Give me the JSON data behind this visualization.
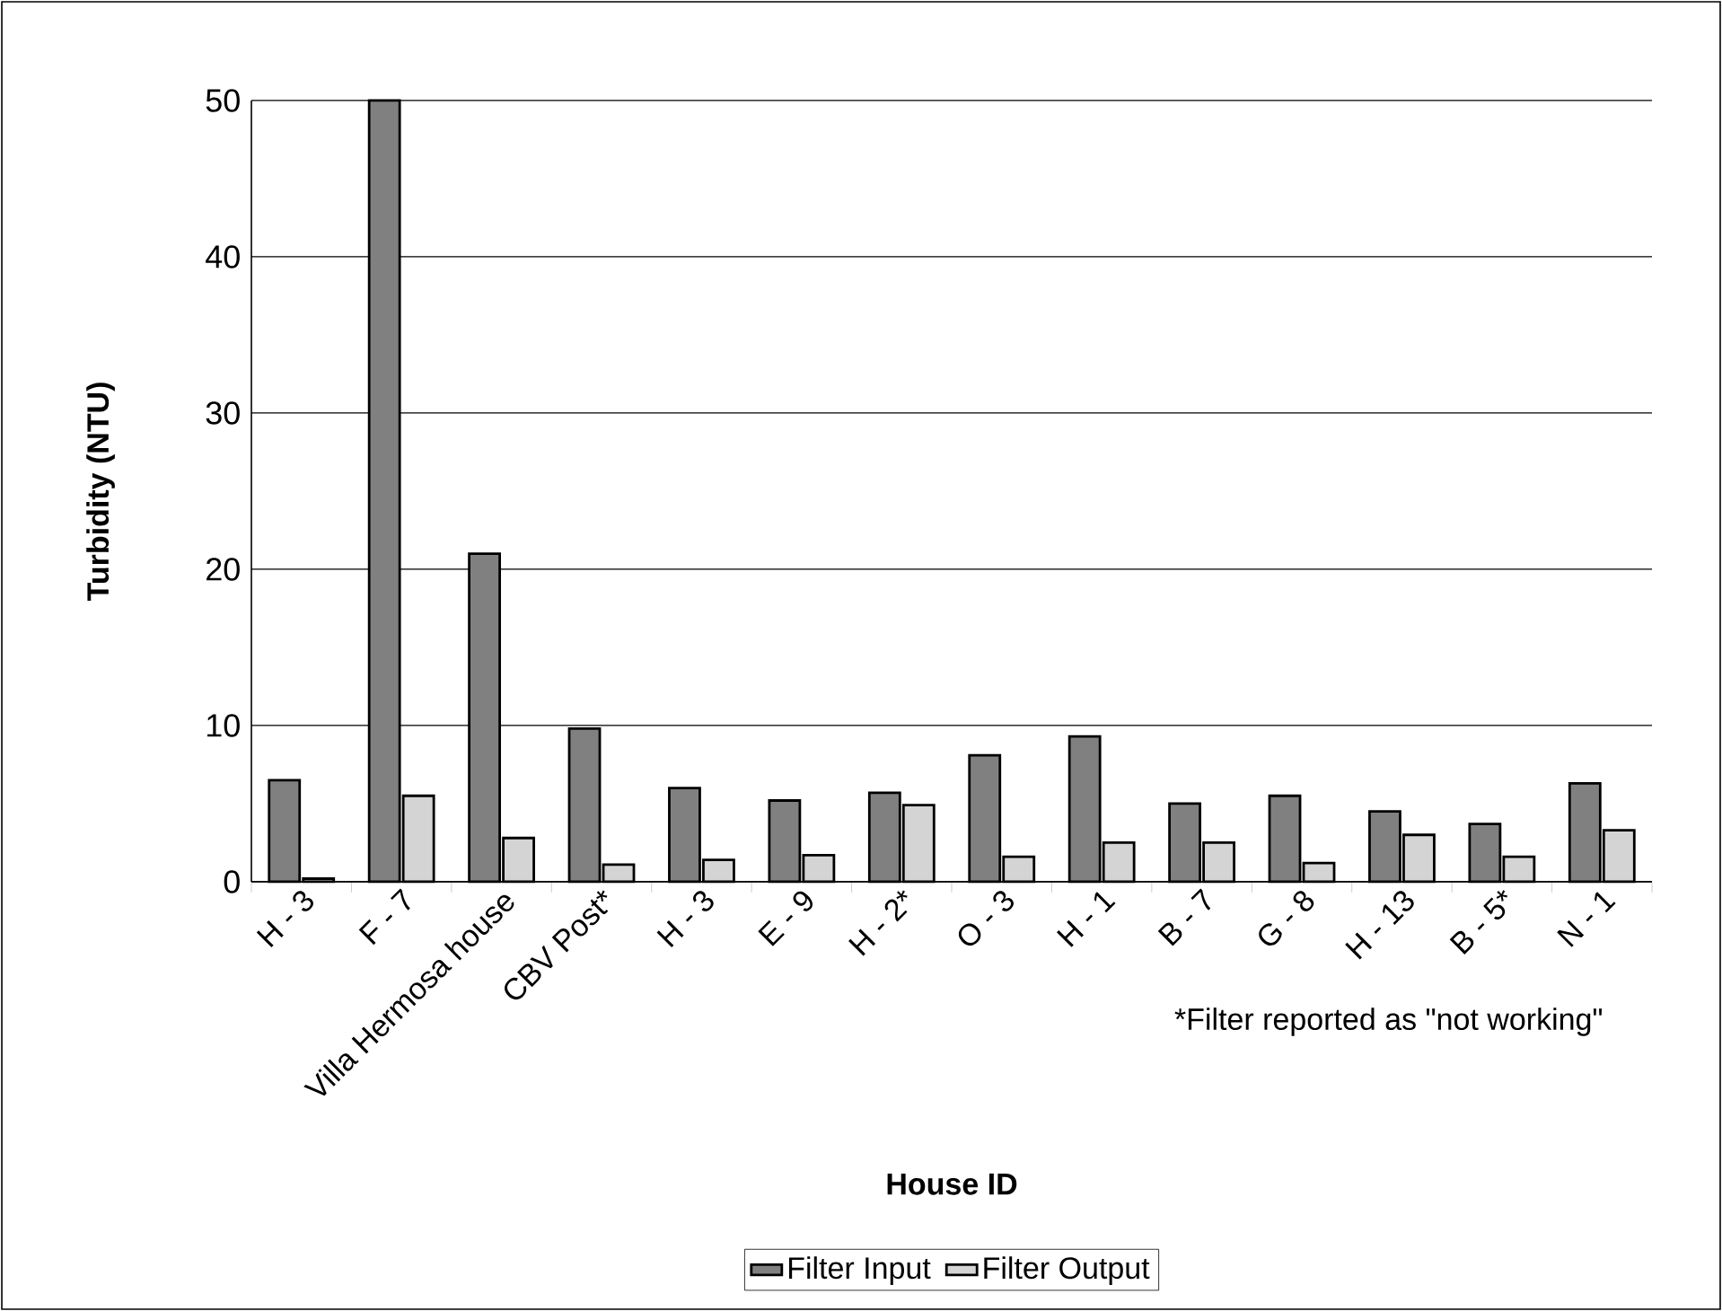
{
  "chart_data": {
    "type": "bar",
    "xlabel": "House ID",
    "ylabel": "Turbidity (NTU)",
    "categories": [
      "H - 3",
      "F - 7",
      "Villa Hermosa house",
      "CBV Post*",
      "H - 3",
      "E - 9",
      "H - 2*",
      "O - 3",
      "H - 1",
      "B - 7",
      "G - 8",
      "H - 13",
      "B - 5*",
      "N - 1"
    ],
    "series": [
      {
        "name": "Filter Input",
        "color": "#808080",
        "values": [
          6.5,
          50,
          21,
          9.8,
          6,
          5.2,
          5.7,
          8.1,
          9.3,
          5,
          5.5,
          4.5,
          3.7,
          6.3
        ]
      },
      {
        "name": "Filter Output",
        "color": "#d4d4d4",
        "values": [
          0.2,
          5.5,
          2.8,
          1.1,
          1.4,
          1.7,
          4.9,
          1.6,
          2.5,
          2.5,
          1.2,
          3,
          1.6,
          3.3
        ]
      }
    ],
    "ylim": [
      0,
      50
    ],
    "yticks": [
      0,
      10,
      20,
      30,
      40,
      50
    ],
    "grid": "y",
    "legend": "bottom",
    "annotations": [
      "*Filter reported as \"not working\""
    ]
  }
}
